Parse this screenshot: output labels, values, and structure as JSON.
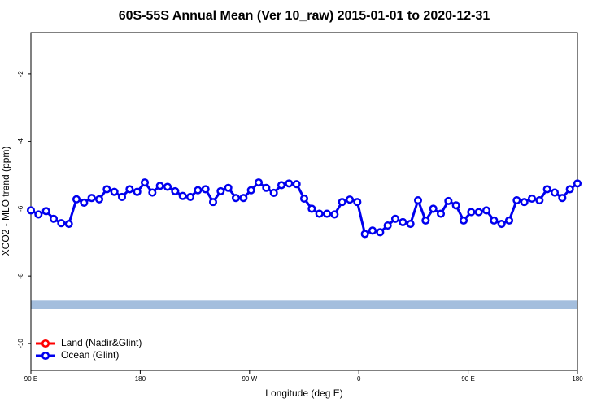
{
  "chart_data": {
    "type": "line",
    "title": "60S-55S Annual Mean (Ver 10_raw)   2015-01-01 to 2020-12-31",
    "x_label": "Longitude (deg E)",
    "y_label": "XCO2 - MLO trend (ppm)",
    "x": [
      90,
      96.25,
      102.5,
      108.75,
      115,
      121.25,
      127.5,
      133.75,
      140,
      146.25,
      152.5,
      158.75,
      165,
      171.25,
      177.5,
      183.75,
      190,
      196.25,
      202.5,
      208.75,
      215,
      221.25,
      227.5,
      233.75,
      240,
      246.25,
      252.5,
      258.75,
      265,
      271.25,
      277.5,
      283.75,
      290,
      296.25,
      302.5,
      308.75,
      315,
      321.25,
      327.5,
      333.75,
      340,
      346.25,
      352.5,
      358.75,
      365,
      371.25,
      377.5,
      383.75,
      390,
      396.25,
      402.5,
      408.75,
      415,
      421.25,
      427.5,
      433.75,
      440,
      446.25,
      452.5,
      458.75,
      465,
      471.25,
      477.5,
      483.75,
      490,
      496.25,
      502.5,
      508.75,
      515,
      521.25,
      527.5,
      533.75,
      540
    ],
    "series": [
      {
        "name": "Land (Nadir&Glint)",
        "color": "#ff0000",
        "values": [
          null,
          null,
          null,
          null,
          null,
          null,
          null,
          null,
          null,
          null,
          null,
          null,
          null,
          null,
          null,
          null,
          null,
          null,
          null,
          null,
          null,
          null,
          null,
          null,
          null,
          null,
          null,
          null,
          null,
          null,
          null,
          null,
          null,
          null,
          null,
          null,
          null,
          null,
          null,
          null,
          null,
          null,
          null,
          null,
          null,
          null,
          null,
          null,
          null,
          null,
          null,
          null,
          null,
          null,
          null,
          null,
          null,
          null,
          null,
          null,
          null,
          null,
          null,
          null,
          null,
          null,
          null,
          null,
          null,
          null,
          null,
          null,
          null
        ]
      },
      {
        "name": "Ocean (Glint)",
        "color": "#0000ee",
        "values": [
          -6.05,
          -6.17,
          -6.07,
          -6.3,
          -6.43,
          -6.45,
          -5.72,
          -5.82,
          -5.68,
          -5.72,
          -5.42,
          -5.5,
          -5.65,
          -5.42,
          -5.5,
          -5.22,
          -5.52,
          -5.32,
          -5.35,
          -5.48,
          -5.62,
          -5.65,
          -5.45,
          -5.42,
          -5.8,
          -5.48,
          -5.38,
          -5.68,
          -5.68,
          -5.45,
          -5.22,
          -5.38,
          -5.53,
          -5.3,
          -5.25,
          -5.27,
          -5.7,
          -6.0,
          -6.15,
          -6.15,
          -6.17,
          -5.8,
          -5.73,
          -5.8,
          -6.75,
          -6.65,
          -6.7,
          -6.5,
          -6.3,
          -6.4,
          -6.45,
          -5.75,
          -6.35,
          -6.0,
          -6.15,
          -5.77,
          -5.9,
          -6.35,
          -6.1,
          -6.1,
          -6.05,
          -6.35,
          -6.45,
          -6.35,
          -5.75,
          -5.8,
          -5.7,
          -5.75,
          -5.42,
          -5.52,
          -5.68,
          -5.42,
          -5.25
        ]
      }
    ],
    "reference_band": {
      "value": -8.85,
      "color": "#a4bedd"
    },
    "xlim": [
      90,
      540
    ],
    "xticks": [
      {
        "value": 90,
        "label": "90 E"
      },
      180,
      {
        "value": 270,
        "label": "90 W"
      },
      {
        "value": 360,
        "label": "0"
      },
      {
        "value": 450,
        "label": "90 E"
      },
      {
        "value": 540,
        "label": "180"
      }
    ],
    "ylim": [
      -10.8,
      -0.77
    ],
    "yticks": [
      -10,
      -8,
      -6,
      -4,
      -2
    ],
    "legend": "bottom-left"
  }
}
